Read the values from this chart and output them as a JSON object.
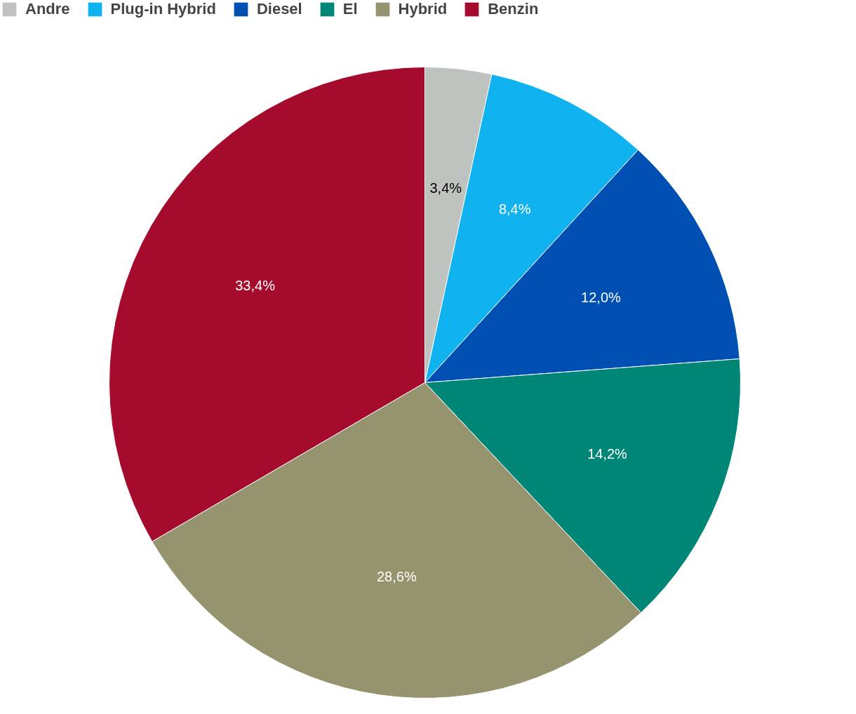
{
  "chart_data": {
    "type": "pie",
    "categories": [
      "Andre",
      "Plug-in Hybrid",
      "Diesel",
      "El",
      "Hybrid",
      "Benzin"
    ],
    "values": [
      3.4,
      8.4,
      12.0,
      14.2,
      28.6,
      33.4
    ],
    "colors": [
      "#bfc3bf",
      "#10b3ef",
      "#0050b4",
      "#008676",
      "#96946e",
      "#a50b2d"
    ],
    "value_labels": [
      "3,4%",
      "8,4%",
      "12,0%",
      "14,2%",
      "28,6%",
      "33,4%"
    ],
    "legend": "top"
  }
}
